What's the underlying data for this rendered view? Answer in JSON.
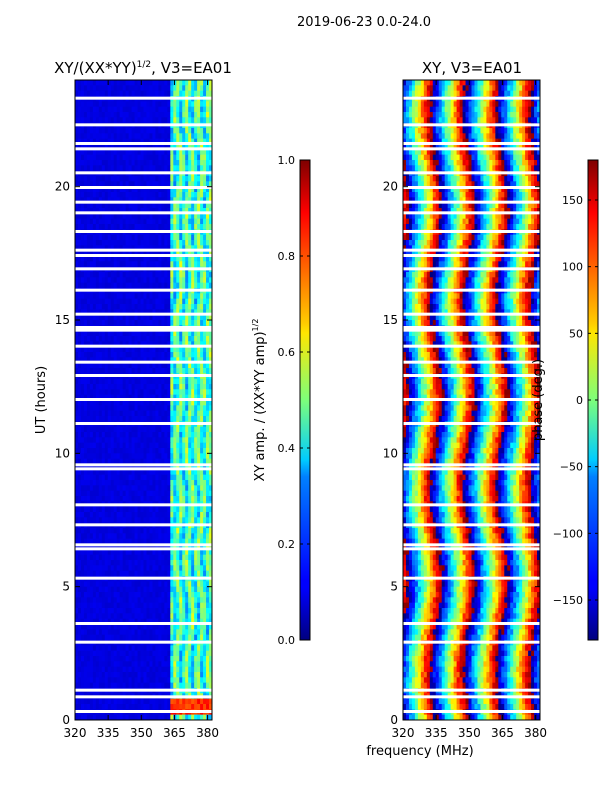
{
  "figure": {
    "suptitle": "2019-06-23 0.0-24.0",
    "xlabel": "frequency (MHz)"
  },
  "chart_data": [
    {
      "type": "heatmap",
      "title": "XY/(XX*YY)",
      "title_exponent": "1/2",
      "title_suffix": ", V3=EA01",
      "xlabel": "",
      "ylabel": "UT (hours)",
      "xlim": [
        320,
        382
      ],
      "ylim": [
        0,
        24
      ],
      "xticks": [
        320,
        335,
        350,
        365,
        380
      ],
      "yticks": [
        0,
        5,
        10,
        15,
        20
      ],
      "colorbar": {
        "label": "XY amp. / (XX*YY amp)",
        "label_exponent": "1/2",
        "range": [
          0.0,
          1.0
        ],
        "ticks": [
          "0.0",
          "0.2",
          "0.4",
          "0.6",
          "0.8",
          "1.0"
        ],
        "colormap": "jet"
      },
      "features": {
        "low_band_value": 0.08,
        "high_band_start_mhz": 363,
        "high_band_value_range": [
          0.3,
          0.55
        ],
        "strong_feature_ut_hours": 0.5,
        "data_gap_ut_hours": [
          0.3,
          0.85,
          1.1,
          2.9,
          3.6,
          5.3,
          6.4,
          6.55,
          7.3,
          8.05,
          9.4,
          9.55,
          11.1,
          12.0,
          12.9,
          13.4,
          14.0,
          14.6,
          14.7,
          15.2,
          16.1,
          16.9,
          17.4,
          17.6,
          18.3,
          19.0,
          19.4,
          19.95,
          20.5,
          21.4,
          21.6,
          22.3,
          23.3
        ]
      }
    },
    {
      "type": "heatmap",
      "title": "XY, V3=EA01",
      "xlabel": "",
      "ylabel": "",
      "xlim": [
        320,
        382
      ],
      "ylim": [
        0,
        24
      ],
      "xticks": [
        320,
        335,
        350,
        365,
        380
      ],
      "yticks": [
        0,
        5,
        10,
        15,
        20
      ],
      "colorbar": {
        "label": "phase (deg.)",
        "range": [
          -180,
          180
        ],
        "ticks": [
          "−150",
          "−100",
          "−50",
          "0",
          "50",
          "100",
          "150"
        ],
        "colormap": "jet"
      },
      "features": {
        "phase_wrap_bands": "vertical stripes, phase winding across frequency",
        "data_gap_ut_hours": [
          0.3,
          0.85,
          1.1,
          2.9,
          3.6,
          5.3,
          6.4,
          6.55,
          7.3,
          8.05,
          9.4,
          9.55,
          11.1,
          12.0,
          12.9,
          13.4,
          14.0,
          14.6,
          14.7,
          15.2,
          16.1,
          16.9,
          17.4,
          17.6,
          18.3,
          19.0,
          19.4,
          19.95,
          20.5,
          21.4,
          21.6,
          22.3,
          23.3
        ]
      }
    }
  ]
}
